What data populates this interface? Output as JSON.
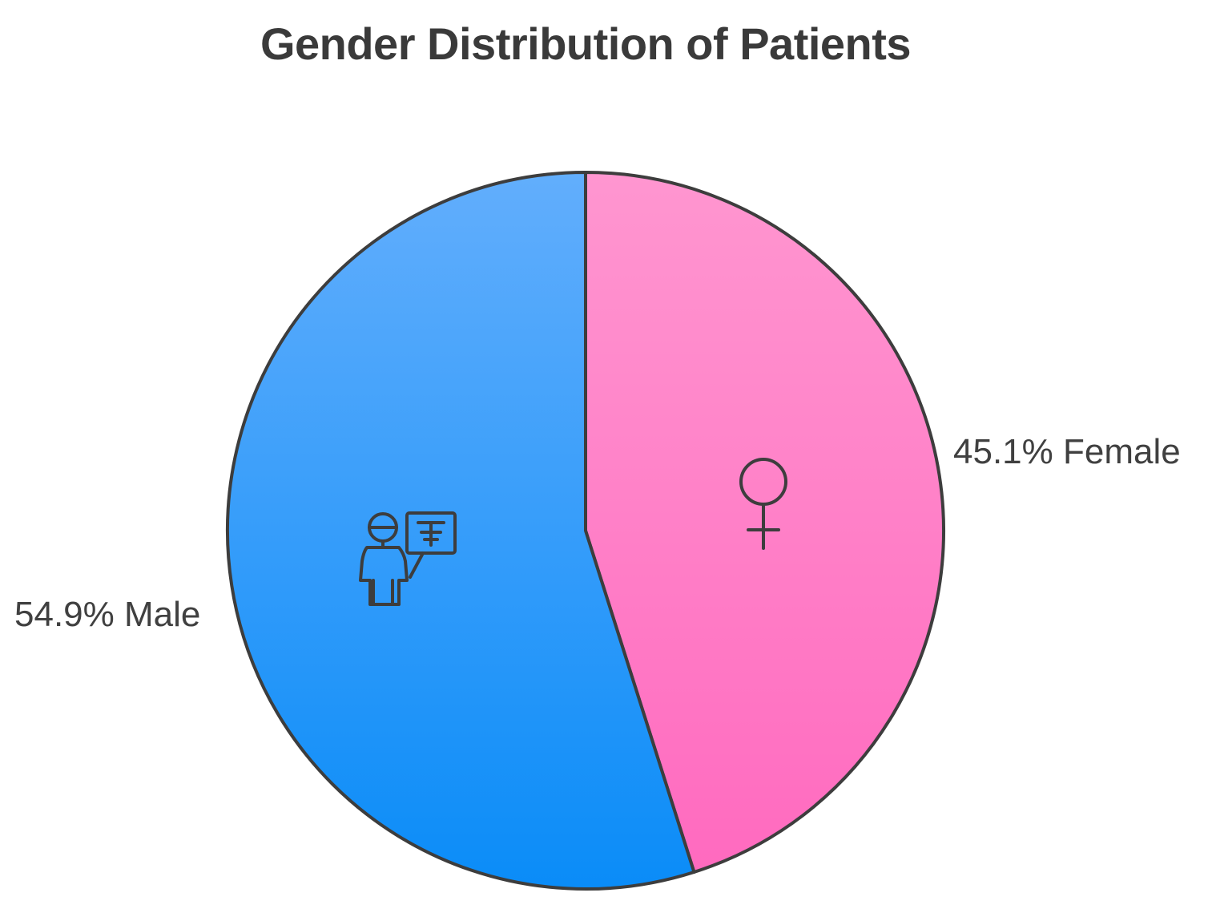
{
  "chart_data": {
    "type": "pie",
    "title": "Gender Distribution of Patients",
    "slices": [
      {
        "label": "Male",
        "value": 54.9,
        "display": "54.9% Male",
        "color_top": "#62aefc",
        "color_bottom": "#0a8cf8",
        "icon": "male-patient-xray-icon"
      },
      {
        "label": "Female",
        "value": 45.1,
        "display": "45.1% Female",
        "color_top": "#ff96d0",
        "color_bottom": "#ff6abf",
        "icon": "female-symbol-icon"
      }
    ],
    "legend": "none"
  }
}
